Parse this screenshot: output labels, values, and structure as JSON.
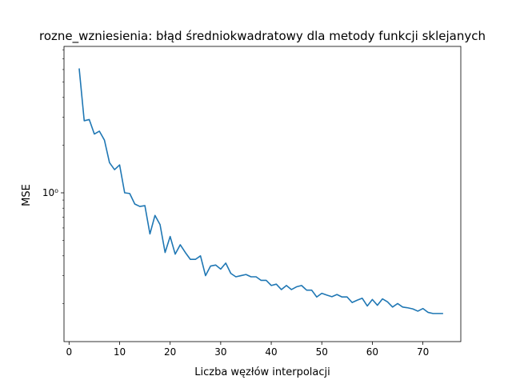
{
  "chart_data": {
    "type": "line",
    "title": "rozne_wzniesienia: błąd średniokwadratowy dla metody funkcji sklejanych",
    "xlabel": "Liczba węzłów interpolacji",
    "ylabel": "MSE",
    "yscale": "log",
    "xlim": [
      -1,
      77.5
    ],
    "ylim": [
      0.115,
      8.4
    ],
    "xticks": [
      0,
      10,
      20,
      30,
      40,
      50,
      60,
      70
    ],
    "xtick_labels": [
      "0",
      "10",
      "20",
      "30",
      "40",
      "50",
      "60",
      "70"
    ],
    "yticks": [
      1
    ],
    "ytick_labels": [
      "10⁰"
    ],
    "grid": false,
    "color": "#1f77b4",
    "x": [
      2,
      3,
      4,
      5,
      6,
      7,
      8,
      9,
      10,
      11,
      12,
      13,
      14,
      15,
      16,
      17,
      18,
      19,
      20,
      21,
      22,
      23,
      24,
      25,
      26,
      27,
      28,
      29,
      30,
      31,
      32,
      33,
      34,
      35,
      36,
      37,
      38,
      39,
      40,
      41,
      42,
      43,
      44,
      45,
      46,
      47,
      48,
      49,
      50,
      51,
      52,
      53,
      54,
      55,
      56,
      57,
      58,
      59,
      60,
      61,
      62,
      63,
      64,
      65,
      66,
      67,
      68,
      69,
      70,
      71,
      72,
      73,
      74
    ],
    "y": [
      6.1,
      2.85,
      2.9,
      2.35,
      2.45,
      2.15,
      1.55,
      1.4,
      1.5,
      1.0,
      0.99,
      0.85,
      0.82,
      0.83,
      0.55,
      0.72,
      0.63,
      0.42,
      0.53,
      0.41,
      0.47,
      0.42,
      0.38,
      0.38,
      0.4,
      0.3,
      0.345,
      0.35,
      0.33,
      0.36,
      0.31,
      0.295,
      0.3,
      0.305,
      0.295,
      0.295,
      0.28,
      0.28,
      0.26,
      0.265,
      0.245,
      0.26,
      0.245,
      0.255,
      0.26,
      0.243,
      0.243,
      0.22,
      0.232,
      0.226,
      0.221,
      0.228,
      0.22,
      0.22,
      0.203,
      0.21,
      0.216,
      0.193,
      0.212,
      0.195,
      0.214,
      0.205,
      0.19,
      0.2,
      0.19,
      0.188,
      0.185,
      0.179,
      0.186,
      0.176,
      0.173,
      0.173,
      0.173
    ]
  }
}
